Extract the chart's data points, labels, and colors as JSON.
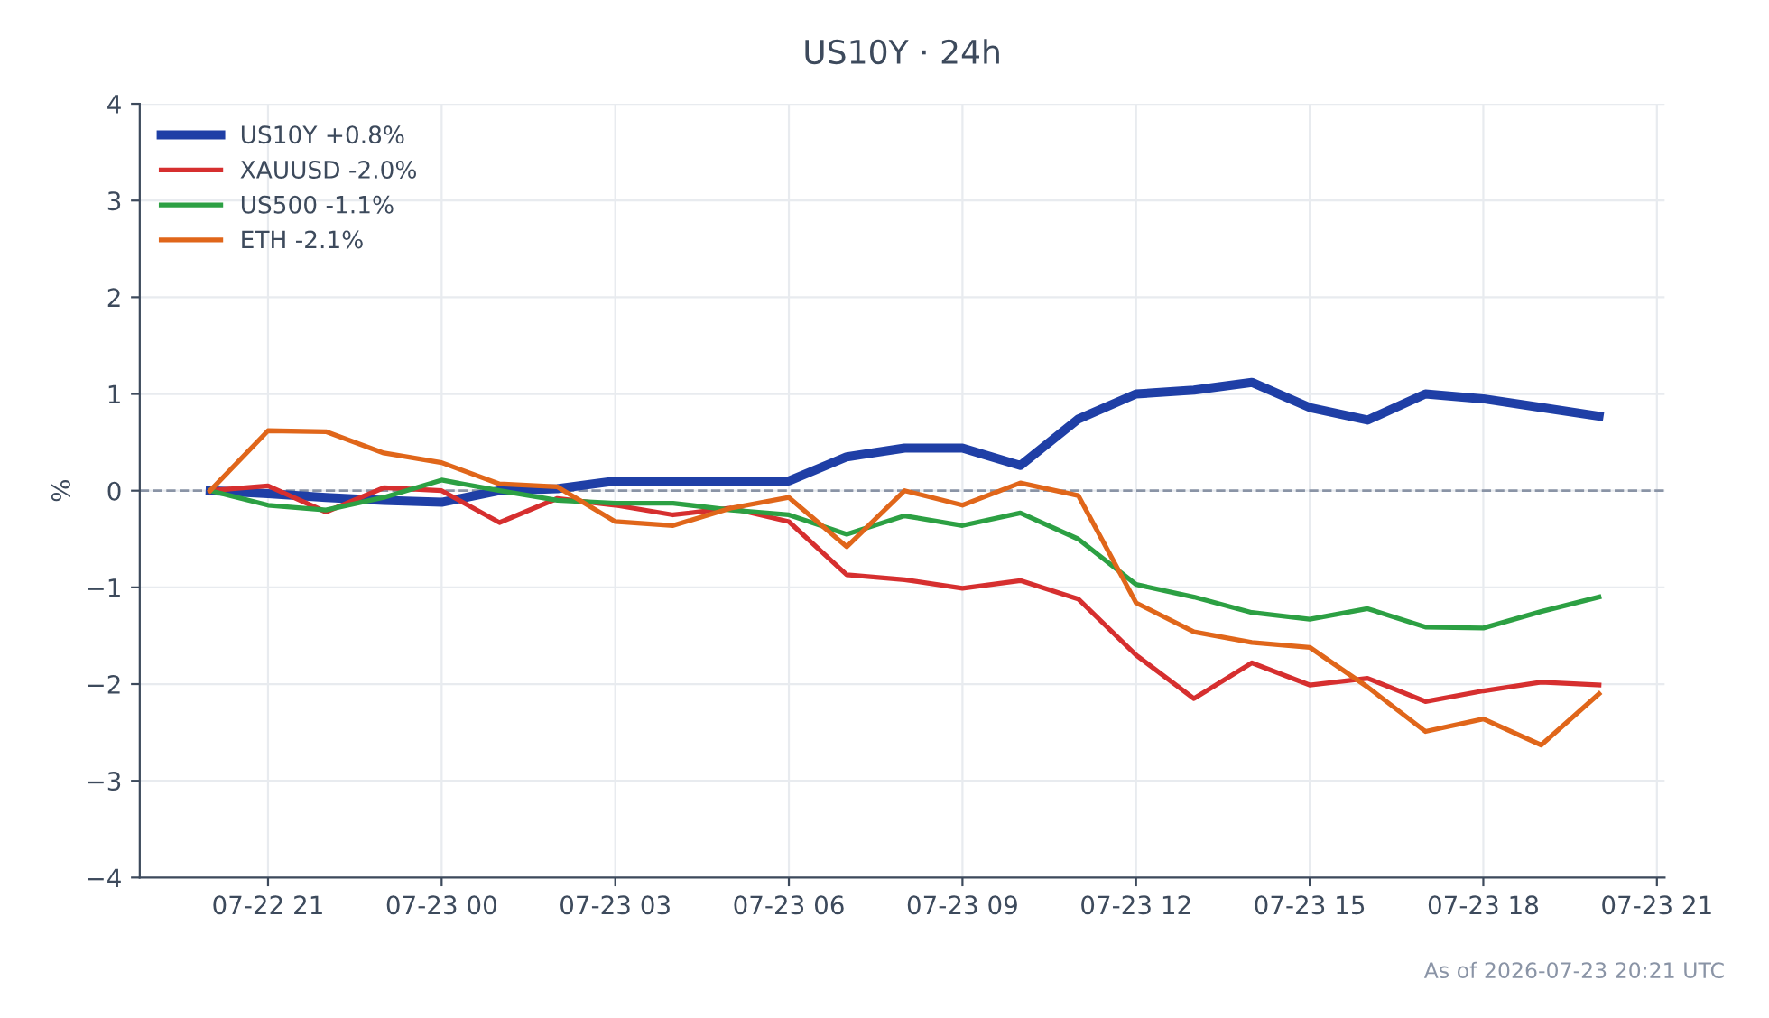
{
  "chart_data": {
    "type": "line",
    "title": "US10Y · 24h",
    "ylabel": "%",
    "x": [
      "2026-07-22T20:00",
      "2026-07-22T21:00",
      "2026-07-22T22:00",
      "2026-07-22T23:00",
      "2026-07-23T00:00",
      "2026-07-23T01:00",
      "2026-07-23T02:00",
      "2026-07-23T03:00",
      "2026-07-23T04:00",
      "2026-07-23T05:00",
      "2026-07-23T06:00",
      "2026-07-23T07:00",
      "2026-07-23T08:00",
      "2026-07-23T09:00",
      "2026-07-23T10:00",
      "2026-07-23T11:00",
      "2026-07-23T12:00",
      "2026-07-23T13:00",
      "2026-07-23T14:00",
      "2026-07-23T15:00",
      "2026-07-23T16:00",
      "2026-07-23T17:00",
      "2026-07-23T18:00",
      "2026-07-23T19:00",
      "2026-07-23T20:00"
    ],
    "series": [
      {
        "name": "US10Y +0.8%",
        "color": "#1f3fa6",
        "values": [
          0,
          -0.03,
          -0.07,
          -0.1,
          -0.12,
          0.0,
          0.02,
          0.1,
          0.1,
          0.1,
          0.1,
          0.35,
          0.44,
          0.44,
          0.26,
          0.74,
          1.0,
          1.04,
          1.12,
          0.86,
          0.73,
          1.0,
          0.95,
          0.86,
          0.77
        ]
      },
      {
        "name": "XAUUSD -2.0%",
        "color": "#d62f2f",
        "values": [
          0,
          0.05,
          -0.22,
          0.03,
          0.0,
          -0.33,
          -0.08,
          -0.15,
          -0.25,
          -0.18,
          -0.32,
          -0.87,
          -0.92,
          -1.01,
          -0.93,
          -1.12,
          -1.7,
          -2.15,
          -1.78,
          -2.01,
          -1.94,
          -2.18,
          -2.07,
          -1.98,
          -2.01
        ]
      },
      {
        "name": "US500 -1.1%",
        "color": "#2ca043",
        "values": [
          0,
          -0.15,
          -0.2,
          -0.07,
          0.11,
          0.0,
          -0.1,
          -0.13,
          -0.13,
          -0.2,
          -0.25,
          -0.45,
          -0.26,
          -0.36,
          -0.23,
          -0.5,
          -0.97,
          -1.1,
          -1.26,
          -1.33,
          -1.22,
          -1.41,
          -1.42,
          -1.25,
          -1.1
        ]
      },
      {
        "name": "ETH -2.1%",
        "color": "#e0661a",
        "values": [
          0,
          0.62,
          0.61,
          0.39,
          0.29,
          0.07,
          0.04,
          -0.32,
          -0.36,
          -0.18,
          -0.07,
          -0.58,
          0.0,
          -0.15,
          0.08,
          -0.05,
          -1.16,
          -1.46,
          -1.57,
          -1.62,
          -2.03,
          -2.49,
          -2.36,
          -2.63,
          -2.1
        ]
      }
    ],
    "xlim": [
      "2026-07-22T18:47",
      "2026-07-23T21:08"
    ],
    "xticks": [
      {
        "value": "2026-07-22T21:00",
        "label": "07-22 21"
      },
      {
        "value": "2026-07-23T00:00",
        "label": "07-23 00"
      },
      {
        "value": "2026-07-23T03:00",
        "label": "07-23 03"
      },
      {
        "value": "2026-07-23T06:00",
        "label": "07-23 06"
      },
      {
        "value": "2026-07-23T09:00",
        "label": "07-23 09"
      },
      {
        "value": "2026-07-23T12:00",
        "label": "07-23 12"
      },
      {
        "value": "2026-07-23T15:00",
        "label": "07-23 15"
      },
      {
        "value": "2026-07-23T18:00",
        "label": "07-23 18"
      },
      {
        "value": "2026-07-23T21:00",
        "label": "07-23 21"
      }
    ],
    "ylim": [
      -4,
      4
    ],
    "yticks": [
      -4,
      -3,
      -2,
      -1,
      0,
      1,
      2,
      3,
      4
    ],
    "ref_lines": [
      {
        "axis": "y",
        "value": 0,
        "label": null,
        "color": "#8a94a6",
        "line_style": "dashed"
      }
    ],
    "grid": true,
    "legend": "top left",
    "marker": "none",
    "line_style": "solid",
    "annotations": [
      "As of 2026-07-23 20:21 UTC"
    ]
  }
}
